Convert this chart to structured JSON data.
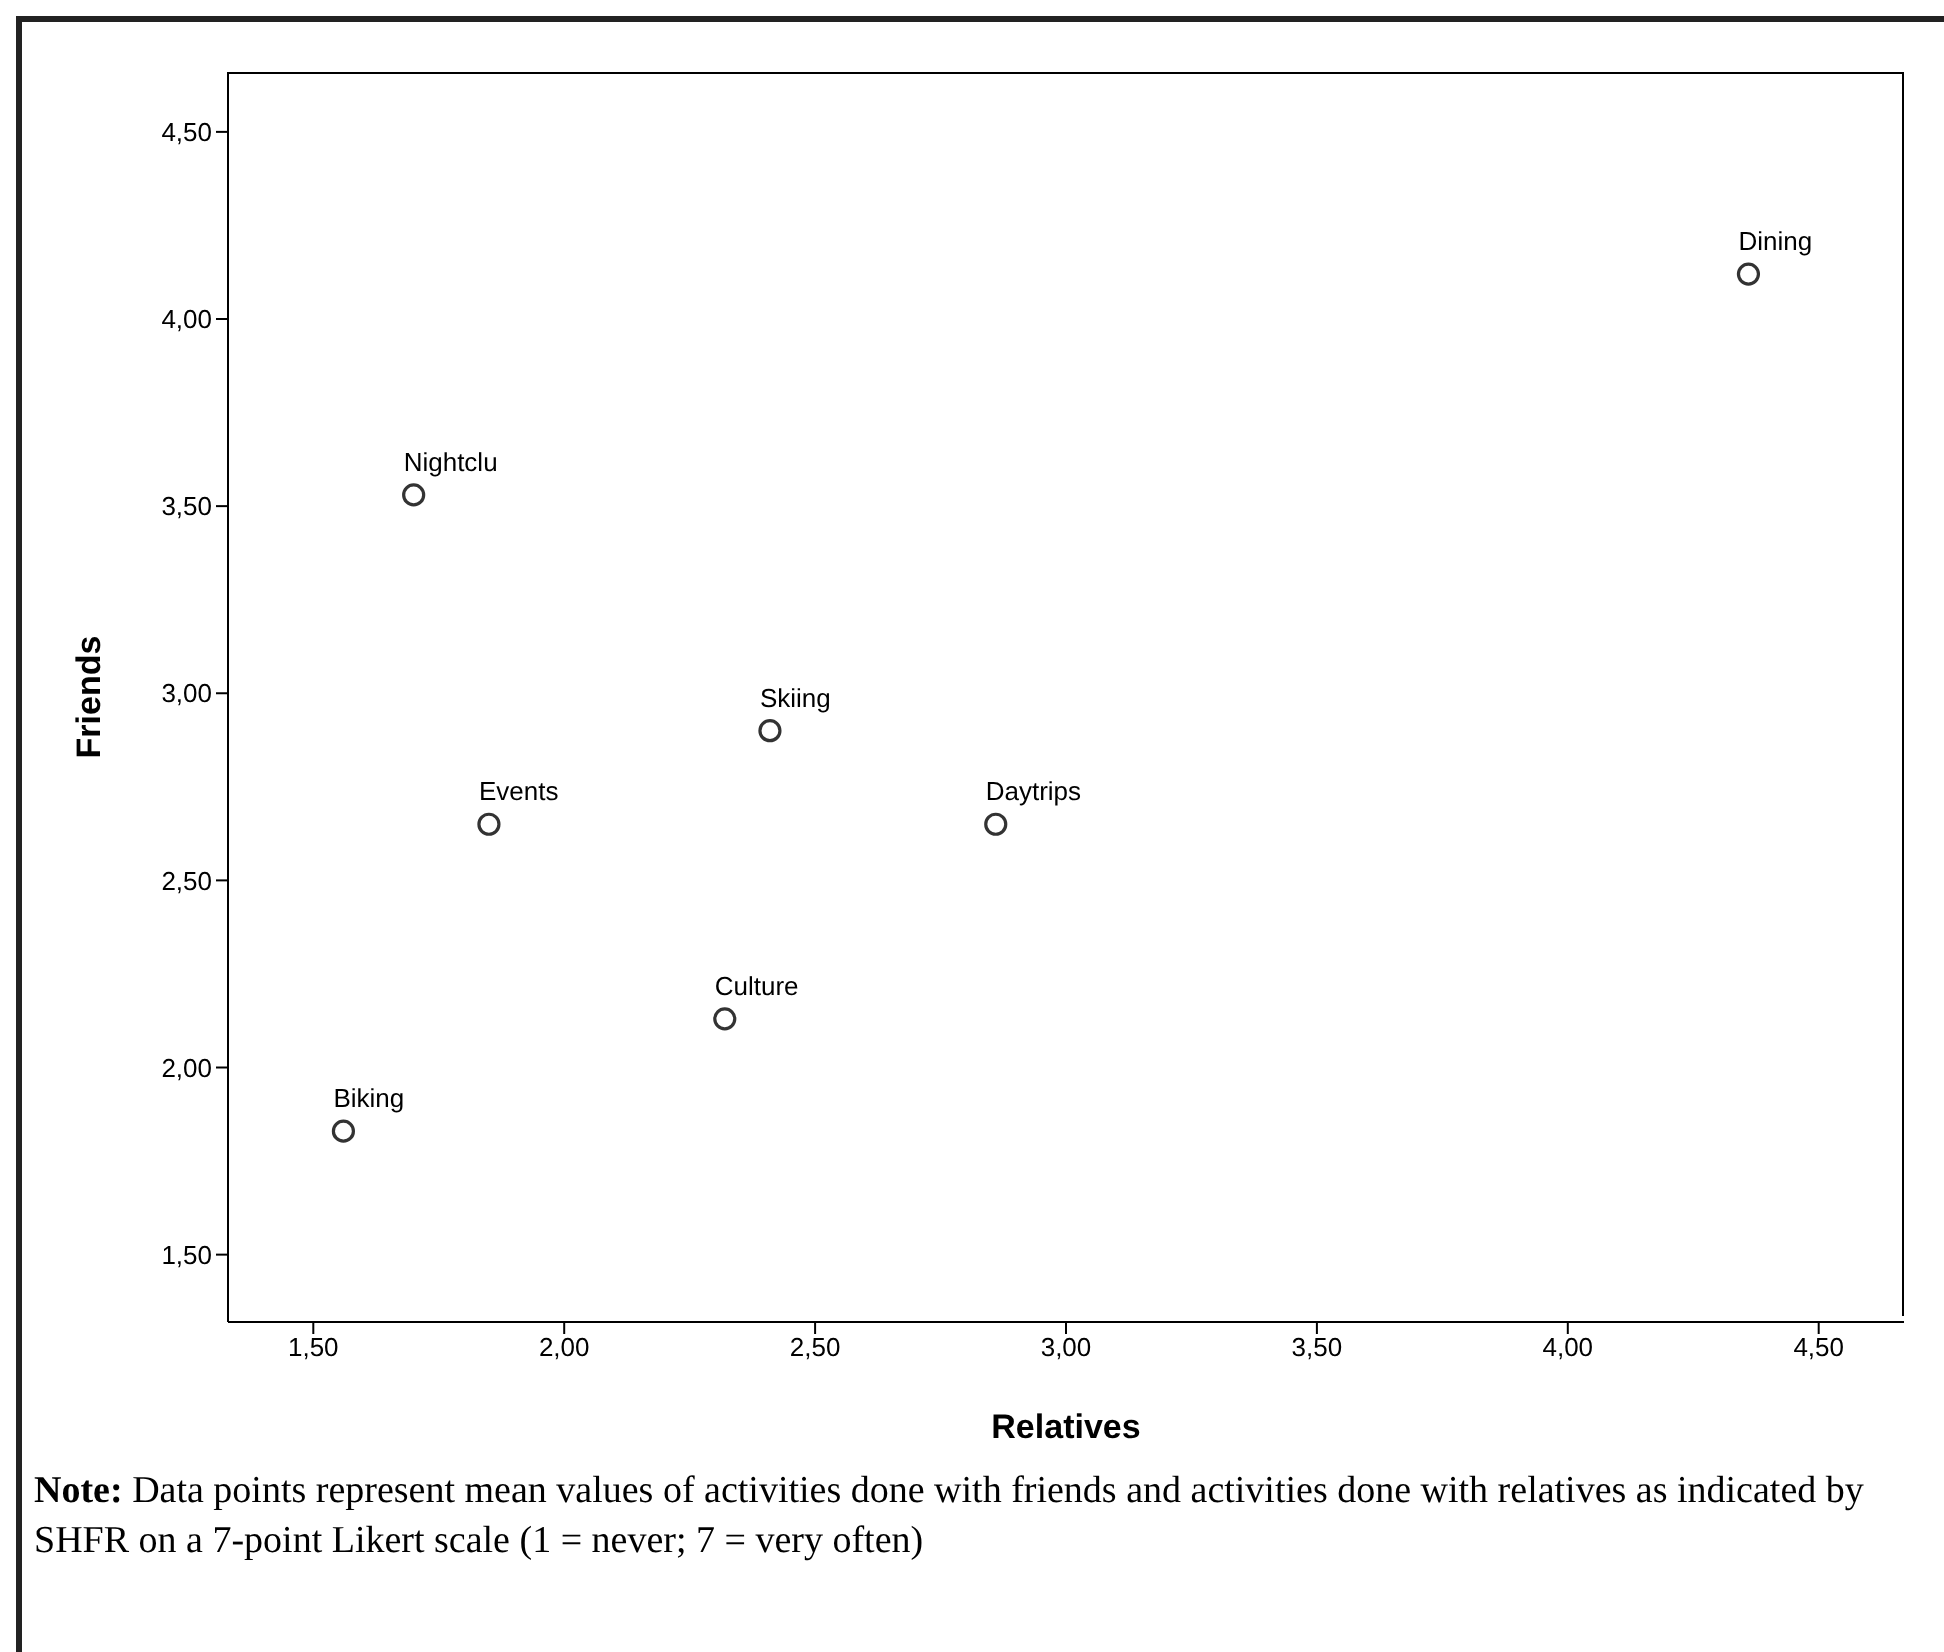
{
  "chart_data": {
    "type": "scatter",
    "xlabel": "Relatives",
    "ylabel": "Friends",
    "x": [
      4.36,
      1.7,
      2.41,
      1.85,
      2.86,
      2.32,
      1.56
    ],
    "values": [
      4.12,
      3.53,
      2.9,
      2.65,
      2.65,
      2.13,
      1.83
    ],
    "color": "#333333",
    "marker": "circle",
    "grid": false,
    "legend": false,
    "xlim": [
      1.33,
      4.67
    ],
    "xticks": [
      {
        "value": 1.5,
        "label": "1,50"
      },
      {
        "value": 2,
        "label": "2,00"
      },
      {
        "value": 2.5,
        "label": "2,50"
      },
      {
        "value": 3,
        "label": "3,00"
      },
      {
        "value": 3.5,
        "label": "3,50"
      },
      {
        "value": 4,
        "label": "4,00"
      },
      {
        "value": 4.5,
        "label": "4,50"
      }
    ],
    "ylim": [
      1.32,
      4.66
    ],
    "yticks": [
      {
        "value": 1.5,
        "label": "1,50"
      },
      {
        "value": 2,
        "label": "2,00"
      },
      {
        "value": 2.5,
        "label": "2,50"
      },
      {
        "value": 3,
        "label": "3,00"
      },
      {
        "value": 3.5,
        "label": "3,50"
      },
      {
        "value": 4,
        "label": "4,00"
      },
      {
        "value": 4.5,
        "label": "4,50"
      }
    ],
    "annotations": [
      {
        "text": "Dining",
        "x": 4.36,
        "y": 4.12
      },
      {
        "text": "Nightclu",
        "x": 1.7,
        "y": 3.53
      },
      {
        "text": "Skiing",
        "x": 2.41,
        "y": 2.9
      },
      {
        "text": "Events",
        "x": 1.85,
        "y": 2.65
      },
      {
        "text": "Daytrips",
        "x": 2.86,
        "y": 2.65
      },
      {
        "text": "Culture",
        "x": 2.32,
        "y": 2.13
      },
      {
        "text": "Biking",
        "x": 1.56,
        "y": 1.83
      },
      "Note: Data points represent mean values of activities done with friends and activities done with relatives as indicated by SHFR on a 7-point Likert scale (1 = never; 7 = very often)"
    ]
  }
}
